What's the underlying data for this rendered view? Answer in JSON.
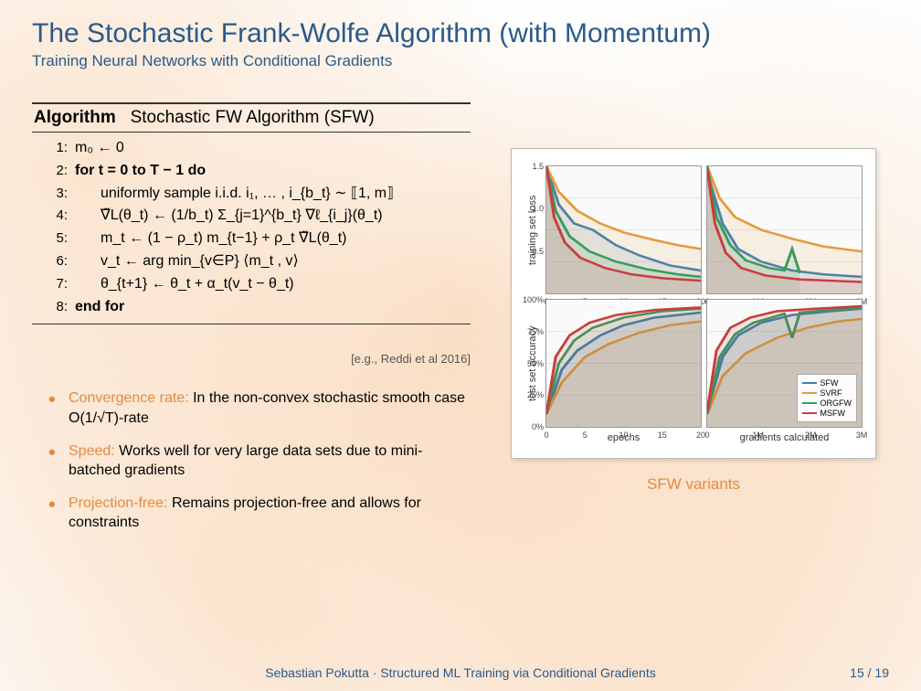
{
  "title": "The Stochastic Frank-Wolfe Algorithm (with Momentum)",
  "subtitle": "Training Neural Networks with Conditional Gradients",
  "algorithm": {
    "header_label": "Algorithm",
    "header_name": "Stochastic FW Algorithm (SFW)",
    "lines": [
      {
        "n": "1:",
        "txt": "m₀ ← 0",
        "indent": 0,
        "bold": false
      },
      {
        "n": "2:",
        "txt": "for t = 0 to T − 1 do",
        "indent": 0,
        "bold": true
      },
      {
        "n": "3:",
        "txt": "uniformly sample i.i.d. i₁, … , i_{b_t} ∼ ⟦1, m⟧",
        "indent": 1,
        "bold": false
      },
      {
        "n": "4:",
        "txt": "∇̃L(θ_t) ← (1/b_t) Σ_{j=1}^{b_t} ∇ℓ_{i_j}(θ_t)",
        "indent": 1,
        "bold": false
      },
      {
        "n": "5:",
        "txt": "m_t ← (1 − ρ_t) m_{t−1} + ρ_t ∇̃L(θ_t)",
        "indent": 1,
        "bold": false
      },
      {
        "n": "6:",
        "txt": "v_t ← arg min_{v∈P}  ⟨m_t , v⟩",
        "indent": 1,
        "bold": false
      },
      {
        "n": "7:",
        "txt": "θ_{t+1} ← θ_t + α_t(v_t − θ_t)",
        "indent": 1,
        "bold": false
      },
      {
        "n": "8:",
        "txt": "end for",
        "indent": 0,
        "bold": true
      }
    ]
  },
  "citation": "[e.g., Reddi et al 2016]",
  "bullets": [
    {
      "head": "Convergence rate:",
      "body": " In the non-convex stochastic smooth case O(1/√T)-rate"
    },
    {
      "head": "Speed:",
      "body": " Works well for very large data sets due to mini-batched gradients"
    },
    {
      "head": "Projection-free:",
      "body": " Remains projection-free and allows for constraints"
    }
  ],
  "figure": {
    "caption": "SFW variants",
    "ylabels": [
      "training set loss",
      "test set accuracy"
    ],
    "xlabels": [
      "epochs",
      "gradients calculated"
    ],
    "colors": {
      "SFW": "#3b7fb5",
      "SVRF": "#e69a3c",
      "ORGFW": "#3a9b5c",
      "MSFW": "#c73f3f",
      "grid": "#dddddd",
      "axis": "#888888",
      "fill_alpha": 0.25
    },
    "legend": [
      "SFW",
      "SVRF",
      "ORGFW",
      "MSFW"
    ],
    "subplots": [
      {
        "row": 0,
        "col": 0,
        "yticks": [
          {
            "v": 0,
            "l": ""
          },
          {
            "v": 0.33,
            "l": "0.5"
          },
          {
            "v": 0.67,
            "l": "1.0"
          },
          {
            "v": 1.0,
            "l": "1.5"
          }
        ],
        "xticks": [
          {
            "v": 0,
            "l": "0"
          },
          {
            "v": 0.25,
            "l": "5"
          },
          {
            "v": 0.5,
            "l": "10"
          },
          {
            "v": 0.75,
            "l": "15"
          },
          {
            "v": 1.0,
            "l": "20"
          }
        ],
        "series": {
          "SFW": [
            [
              0,
              1.0
            ],
            [
              0.08,
              0.7
            ],
            [
              0.18,
              0.55
            ],
            [
              0.3,
              0.5
            ],
            [
              0.45,
              0.38
            ],
            [
              0.6,
              0.3
            ],
            [
              0.8,
              0.22
            ],
            [
              1.0,
              0.18
            ]
          ],
          "SVRF": [
            [
              0,
              1.0
            ],
            [
              0.08,
              0.8
            ],
            [
              0.2,
              0.65
            ],
            [
              0.35,
              0.55
            ],
            [
              0.5,
              0.48
            ],
            [
              0.7,
              0.42
            ],
            [
              0.85,
              0.38
            ],
            [
              1.0,
              0.35
            ]
          ],
          "ORGFW": [
            [
              0,
              1.0
            ],
            [
              0.06,
              0.65
            ],
            [
              0.15,
              0.45
            ],
            [
              0.28,
              0.33
            ],
            [
              0.45,
              0.25
            ],
            [
              0.65,
              0.19
            ],
            [
              0.85,
              0.15
            ],
            [
              1.0,
              0.13
            ]
          ],
          "MSFW": [
            [
              0,
              1.0
            ],
            [
              0.05,
              0.6
            ],
            [
              0.12,
              0.4
            ],
            [
              0.22,
              0.28
            ],
            [
              0.38,
              0.2
            ],
            [
              0.55,
              0.15
            ],
            [
              0.75,
              0.12
            ],
            [
              1.0,
              0.1
            ]
          ]
        }
      },
      {
        "row": 0,
        "col": 1,
        "yticks": [],
        "xticks": [
          {
            "v": 0,
            "l": "0"
          },
          {
            "v": 0.33,
            "l": "1M"
          },
          {
            "v": 0.67,
            "l": "2M"
          },
          {
            "v": 1.0,
            "l": "3M"
          }
        ],
        "series": {
          "SFW": [
            [
              0,
              0.95
            ],
            [
              0.1,
              0.55
            ],
            [
              0.2,
              0.35
            ],
            [
              0.35,
              0.25
            ],
            [
              0.55,
              0.18
            ],
            [
              0.75,
              0.15
            ],
            [
              1.0,
              0.13
            ]
          ],
          "SVRF": [
            [
              0,
              1.0
            ],
            [
              0.08,
              0.75
            ],
            [
              0.18,
              0.6
            ],
            [
              0.35,
              0.5
            ],
            [
              0.55,
              0.43
            ],
            [
              0.75,
              0.37
            ],
            [
              1.0,
              0.33
            ]
          ],
          "ORGFW": [
            [
              0,
              1.0
            ],
            [
              0.06,
              0.6
            ],
            [
              0.15,
              0.38
            ],
            [
              0.25,
              0.26
            ],
            [
              0.4,
              0.2
            ],
            [
              0.5,
              0.18
            ],
            [
              0.55,
              0.35
            ],
            [
              0.6,
              0.16
            ]
          ],
          "MSFW": [
            [
              0,
              0.98
            ],
            [
              0.05,
              0.55
            ],
            [
              0.12,
              0.32
            ],
            [
              0.22,
              0.2
            ],
            [
              0.38,
              0.14
            ],
            [
              0.6,
              0.11
            ],
            [
              1.0,
              0.09
            ]
          ]
        }
      },
      {
        "row": 1,
        "col": 0,
        "yticks": [
          {
            "v": 0,
            "l": "0%"
          },
          {
            "v": 0.25,
            "l": "25%"
          },
          {
            "v": 0.5,
            "l": "50%"
          },
          {
            "v": 0.75,
            "l": "75%"
          },
          {
            "v": 1.0,
            "l": "100%"
          }
        ],
        "xticks": [
          {
            "v": 0,
            "l": "0"
          },
          {
            "v": 0.25,
            "l": "5"
          },
          {
            "v": 0.5,
            "l": "10"
          },
          {
            "v": 0.75,
            "l": "15"
          },
          {
            "v": 1.0,
            "l": "20"
          }
        ],
        "series": {
          "SFW": [
            [
              0,
              0.1
            ],
            [
              0.1,
              0.45
            ],
            [
              0.2,
              0.6
            ],
            [
              0.35,
              0.72
            ],
            [
              0.5,
              0.8
            ],
            [
              0.7,
              0.86
            ],
            [
              1.0,
              0.9
            ]
          ],
          "SVRF": [
            [
              0,
              0.1
            ],
            [
              0.1,
              0.35
            ],
            [
              0.25,
              0.55
            ],
            [
              0.4,
              0.65
            ],
            [
              0.6,
              0.74
            ],
            [
              0.8,
              0.8
            ],
            [
              1.0,
              0.83
            ]
          ],
          "ORGFW": [
            [
              0,
              0.1
            ],
            [
              0.08,
              0.5
            ],
            [
              0.18,
              0.68
            ],
            [
              0.3,
              0.78
            ],
            [
              0.5,
              0.86
            ],
            [
              0.75,
              0.91
            ],
            [
              1.0,
              0.93
            ]
          ],
          "MSFW": [
            [
              0,
              0.1
            ],
            [
              0.06,
              0.55
            ],
            [
              0.15,
              0.72
            ],
            [
              0.28,
              0.82
            ],
            [
              0.45,
              0.88
            ],
            [
              0.7,
              0.92
            ],
            [
              1.0,
              0.94
            ]
          ]
        }
      },
      {
        "row": 1,
        "col": 1,
        "yticks": [],
        "xticks": [
          {
            "v": 0,
            "l": "0"
          },
          {
            "v": 0.33,
            "l": "1M"
          },
          {
            "v": 0.67,
            "l": "2M"
          },
          {
            "v": 1.0,
            "l": "3M"
          }
        ],
        "legend": true,
        "series": {
          "SFW": [
            [
              0,
              0.12
            ],
            [
              0.1,
              0.55
            ],
            [
              0.2,
              0.72
            ],
            [
              0.35,
              0.82
            ],
            [
              0.55,
              0.88
            ],
            [
              0.8,
              0.91
            ],
            [
              1.0,
              0.93
            ]
          ],
          "SVRF": [
            [
              0,
              0.1
            ],
            [
              0.1,
              0.4
            ],
            [
              0.25,
              0.58
            ],
            [
              0.45,
              0.7
            ],
            [
              0.65,
              0.78
            ],
            [
              0.85,
              0.83
            ],
            [
              1.0,
              0.85
            ]
          ],
          "ORGFW": [
            [
              0,
              0.1
            ],
            [
              0.08,
              0.55
            ],
            [
              0.18,
              0.73
            ],
            [
              0.3,
              0.82
            ],
            [
              0.5,
              0.89
            ],
            [
              0.55,
              0.7
            ],
            [
              0.6,
              0.9
            ],
            [
              1.0,
              0.94
            ]
          ],
          "MSFW": [
            [
              0,
              0.12
            ],
            [
              0.06,
              0.6
            ],
            [
              0.15,
              0.78
            ],
            [
              0.28,
              0.86
            ],
            [
              0.45,
              0.91
            ],
            [
              0.7,
              0.93
            ],
            [
              1.0,
              0.95
            ]
          ]
        }
      }
    ]
  },
  "footer": {
    "text": "Sebastian Pokutta · Structured ML Training via Conditional Gradients",
    "page": "15 / 19"
  }
}
